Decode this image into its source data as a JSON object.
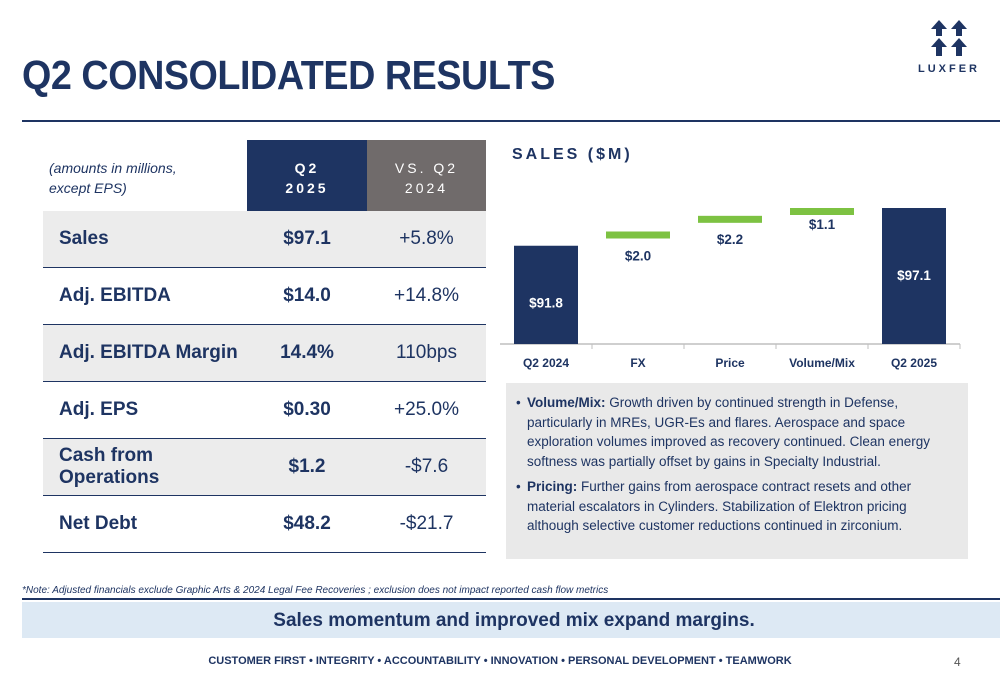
{
  "header": {
    "title": "Q2 CONSOLIDATED RESULTS",
    "logo_text": "LUXFER",
    "logo_icon": "luxfer-arrows-logo"
  },
  "table": {
    "note_line1": "(amounts in millions,",
    "note_line2": "except EPS)",
    "col_q2_line1": "Q2",
    "col_q2_line2": "2025",
    "col_vs_line1": "VS. Q2",
    "col_vs_line2": "2024",
    "rows": [
      {
        "label": "Sales",
        "value": "$97.1",
        "vs": "+5.8%"
      },
      {
        "label": "Adj. EBITDA",
        "value": "$14.0",
        "vs": "+14.8%"
      },
      {
        "label": "Adj. EBITDA Margin",
        "value": "14.4%",
        "vs": "110bps"
      },
      {
        "label": "Adj. EPS",
        "value": "$0.30",
        "vs": "+25.0%"
      },
      {
        "label": "Cash from Operations",
        "value": "$1.2",
        "vs": "-$7.6"
      },
      {
        "label": "Net Debt",
        "value": "$48.2",
        "vs": "-$21.7"
      }
    ]
  },
  "chart_data": {
    "type": "bar",
    "subtype": "waterfall",
    "title": "SALES ($M)",
    "categories": [
      "Q2 2024",
      "FX",
      "Price",
      "Volume/Mix",
      "Q2 2025"
    ],
    "values": [
      91.8,
      2.0,
      2.2,
      1.1,
      97.1
    ],
    "labels": [
      "$91.8",
      "$2.0",
      "$2.2",
      "$1.1",
      "$97.1"
    ],
    "kinds": [
      "total",
      "increase",
      "increase",
      "increase",
      "total"
    ],
    "colors": {
      "total": "#1e3462",
      "increase": "#7dc242"
    }
  },
  "bullets": [
    {
      "head": "Volume/Mix:",
      "text": " Growth driven by continued strength in Defense, particularly in MREs, UGR-Es and flares. Aerospace and space exploration volumes improved as recovery continued. Clean energy softness was partially offset by gains in Specialty Industrial."
    },
    {
      "head": "Pricing:",
      "text": " Further gains from aerospace contract resets and other material escalators in Cylinders. Stabilization of Elektron pricing although selective customer reductions continued in zirconium."
    }
  ],
  "note": "*Note:  Adjusted financials exclude Graphic Arts & 2024 Legal Fee Recoveries ;  exclusion does not impact reported cash flow metrics",
  "banner": "Sales momentum and improved mix expand margins.",
  "footer": "CUSTOMER FIRST  •  INTEGRITY  •  ACCOUNTABILITY  •  INNOVATION  •  PERSONAL DEVELOPMENT  •  TEAMWORK",
  "page_number": "4"
}
